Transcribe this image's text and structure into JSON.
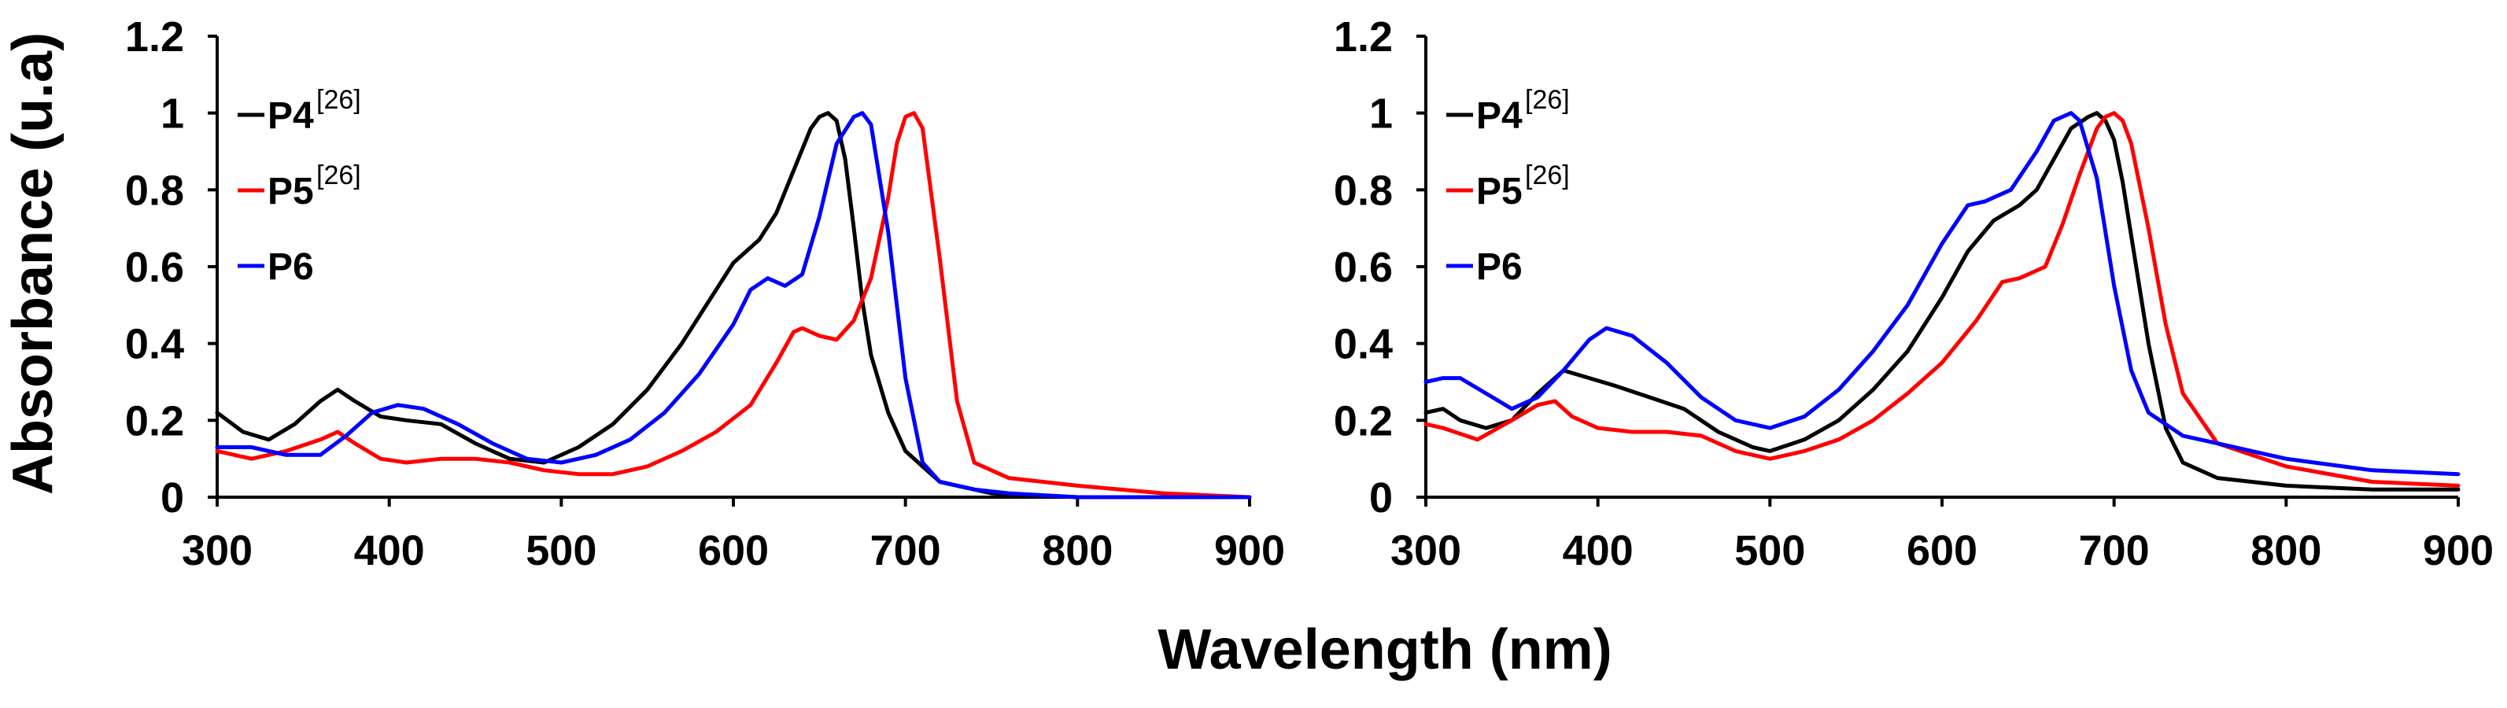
{
  "chart_data": [
    {
      "id": "left",
      "type": "line",
      "xlabel": "Wavelength (nm)",
      "ylabel": "Absorbance (u.a)",
      "xlim": [
        300,
        900
      ],
      "ylim": [
        0,
        1.2
      ],
      "xticks": [
        "300",
        "400",
        "500",
        "600",
        "700",
        "800",
        "900"
      ],
      "yticks": [
        "0",
        "0.2",
        "0.4",
        "0.6",
        "0.8",
        "1",
        "1.2"
      ],
      "legend_position": "top-left",
      "series": [
        {
          "name": "P4",
          "sup": "[26]",
          "color": "#000000",
          "x": [
            300,
            315,
            330,
            345,
            360,
            370,
            380,
            395,
            410,
            430,
            450,
            470,
            490,
            510,
            530,
            550,
            570,
            590,
            600,
            615,
            625,
            635,
            645,
            650,
            655,
            660,
            665,
            670,
            675,
            680,
            690,
            700,
            720,
            750,
            800,
            900
          ],
          "y": [
            0.22,
            0.17,
            0.15,
            0.19,
            0.25,
            0.28,
            0.25,
            0.21,
            0.2,
            0.19,
            0.14,
            0.1,
            0.09,
            0.13,
            0.19,
            0.28,
            0.4,
            0.54,
            0.61,
            0.67,
            0.74,
            0.85,
            0.96,
            0.99,
            1.0,
            0.98,
            0.88,
            0.7,
            0.51,
            0.37,
            0.22,
            0.12,
            0.04,
            0.01,
            0.0,
            0.0
          ]
        },
        {
          "name": "P5",
          "sup": "[26]",
          "color": "#ff0000",
          "x": [
            300,
            320,
            340,
            360,
            370,
            380,
            395,
            410,
            430,
            450,
            470,
            490,
            510,
            530,
            550,
            570,
            590,
            610,
            625,
            635,
            640,
            650,
            660,
            670,
            680,
            690,
            695,
            700,
            705,
            710,
            720,
            730,
            740,
            760,
            780,
            800,
            850,
            900
          ],
          "y": [
            0.12,
            0.1,
            0.12,
            0.15,
            0.17,
            0.14,
            0.1,
            0.09,
            0.1,
            0.1,
            0.09,
            0.07,
            0.06,
            0.06,
            0.08,
            0.12,
            0.17,
            0.24,
            0.35,
            0.43,
            0.44,
            0.42,
            0.41,
            0.46,
            0.57,
            0.78,
            0.92,
            0.99,
            1.0,
            0.96,
            0.62,
            0.25,
            0.09,
            0.05,
            0.04,
            0.03,
            0.01,
            0.0
          ]
        },
        {
          "name": "P6",
          "sup": "",
          "color": "#0000ff",
          "x": [
            300,
            320,
            340,
            360,
            375,
            390,
            405,
            420,
            440,
            460,
            480,
            500,
            520,
            540,
            560,
            580,
            600,
            610,
            620,
            630,
            640,
            650,
            660,
            670,
            675,
            680,
            690,
            700,
            710,
            720,
            740,
            760,
            800,
            900
          ],
          "y": [
            0.13,
            0.13,
            0.11,
            0.11,
            0.16,
            0.22,
            0.24,
            0.23,
            0.19,
            0.14,
            0.1,
            0.09,
            0.11,
            0.15,
            0.22,
            0.32,
            0.45,
            0.54,
            0.57,
            0.55,
            0.58,
            0.73,
            0.92,
            0.99,
            1.0,
            0.97,
            0.69,
            0.31,
            0.09,
            0.04,
            0.02,
            0.01,
            0.0,
            0.0
          ]
        }
      ]
    },
    {
      "id": "right",
      "type": "line",
      "xlabel": "Wavelength (nm)",
      "ylabel": "",
      "xlim": [
        300,
        900
      ],
      "ylim": [
        0,
        1.2
      ],
      "xticks": [
        "300",
        "400",
        "500",
        "600",
        "700",
        "800",
        "900"
      ],
      "yticks": [
        "0",
        "0.2",
        "0.4",
        "0.6",
        "0.8",
        "1",
        "1.2"
      ],
      "legend_position": "top-left",
      "series": [
        {
          "name": "P4",
          "sup": "[26]",
          "color": "#000000",
          "x": [
            300,
            310,
            320,
            335,
            350,
            365,
            380,
            395,
            410,
            430,
            450,
            470,
            490,
            500,
            520,
            540,
            560,
            580,
            600,
            615,
            630,
            645,
            655,
            665,
            675,
            685,
            690,
            695,
            700,
            705,
            710,
            720,
            730,
            740,
            760,
            780,
            800,
            850,
            900
          ],
          "y": [
            0.22,
            0.23,
            0.2,
            0.18,
            0.2,
            0.27,
            0.33,
            0.31,
            0.29,
            0.26,
            0.23,
            0.17,
            0.13,
            0.12,
            0.15,
            0.2,
            0.28,
            0.38,
            0.52,
            0.64,
            0.72,
            0.76,
            0.8,
            0.88,
            0.96,
            0.99,
            1.0,
            0.98,
            0.93,
            0.82,
            0.68,
            0.4,
            0.18,
            0.09,
            0.05,
            0.04,
            0.03,
            0.02,
            0.02
          ]
        },
        {
          "name": "P5",
          "sup": "[26]",
          "color": "#ff0000",
          "x": [
            300,
            310,
            330,
            350,
            365,
            375,
            385,
            400,
            420,
            440,
            460,
            480,
            500,
            520,
            540,
            560,
            580,
            600,
            620,
            635,
            645,
            660,
            670,
            680,
            690,
            695,
            700,
            705,
            710,
            720,
            730,
            740,
            760,
            780,
            800,
            850,
            900
          ],
          "y": [
            0.19,
            0.18,
            0.15,
            0.2,
            0.24,
            0.25,
            0.21,
            0.18,
            0.17,
            0.17,
            0.16,
            0.12,
            0.1,
            0.12,
            0.15,
            0.2,
            0.27,
            0.35,
            0.46,
            0.56,
            0.57,
            0.6,
            0.71,
            0.84,
            0.96,
            0.99,
            1.0,
            0.98,
            0.92,
            0.7,
            0.45,
            0.27,
            0.14,
            0.11,
            0.08,
            0.04,
            0.03
          ]
        },
        {
          "name": "P6",
          "sup": "",
          "color": "#0000ff",
          "x": [
            300,
            310,
            320,
            335,
            350,
            365,
            380,
            395,
            405,
            420,
            440,
            460,
            480,
            500,
            520,
            540,
            560,
            580,
            600,
            615,
            625,
            640,
            655,
            665,
            675,
            680,
            690,
            700,
            710,
            720,
            740,
            760,
            780,
            800,
            850,
            900
          ],
          "y": [
            0.3,
            0.31,
            0.31,
            0.27,
            0.23,
            0.26,
            0.33,
            0.41,
            0.44,
            0.42,
            0.35,
            0.26,
            0.2,
            0.18,
            0.21,
            0.28,
            0.38,
            0.5,
            0.66,
            0.76,
            0.77,
            0.8,
            0.9,
            0.98,
            1.0,
            0.98,
            0.83,
            0.55,
            0.33,
            0.22,
            0.16,
            0.14,
            0.12,
            0.1,
            0.07,
            0.06
          ]
        }
      ]
    }
  ],
  "figure": {
    "ylabel": "Absorbance (u.a)",
    "xlabel": "Wavelength (nm)"
  }
}
